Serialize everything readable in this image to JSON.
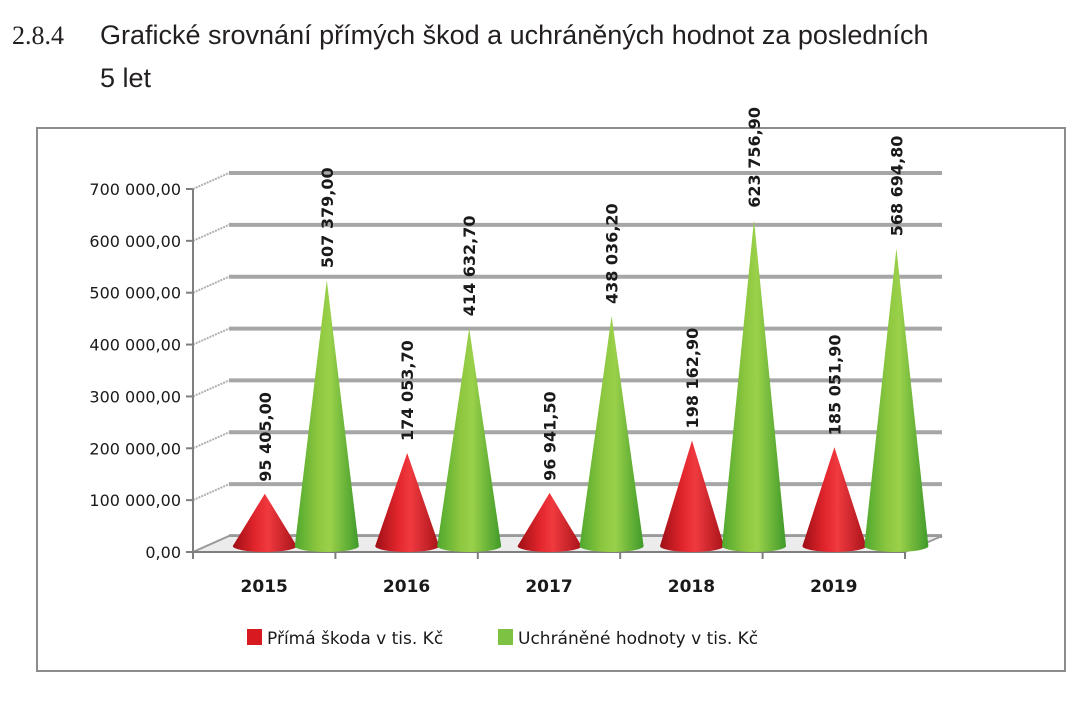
{
  "heading": {
    "number": "2.8.4",
    "title_line1": "Grafické srovnání přímých škod a uchráněných hodnot za posledních",
    "title_line2": "5 let"
  },
  "colors": {
    "series1": "#d71920",
    "series2": "#7dc242",
    "grid": "#a0a0a0",
    "axis": "#7f7f7f"
  },
  "chart_data": {
    "type": "bar",
    "subtype": "3d-cone",
    "title": "Grafické srovnání přímých škod a uchráněných hodnot za posledních 5 let",
    "xlabel": "",
    "ylabel": "",
    "categories": [
      "2015",
      "2016",
      "2017",
      "2018",
      "2019"
    ],
    "series": [
      {
        "name": "Přímá škoda v tis. Kč",
        "color": "#d71920",
        "values": [
          95405.0,
          174053.7,
          96941.5,
          198162.9,
          185051.9
        ],
        "labels": [
          "95 405,00",
          "174 053,70",
          "96 941,50",
          "198 162,90",
          "185 051,90"
        ]
      },
      {
        "name": "Uchráněné hodnoty v tis. Kč",
        "color": "#7dc242",
        "values": [
          507379.0,
          414632.7,
          438036.2,
          623756.9,
          568694.8
        ],
        "labels": [
          "507 379,00",
          "414 632,70",
          "438 036,20",
          "623 756,90",
          "568 694,80"
        ]
      }
    ],
    "ylim": [
      0,
      700000
    ],
    "yticks": [
      "0,00",
      "100 000,00",
      "200 000,00",
      "300 000,00",
      "400 000,00",
      "500 000,00",
      "600 000,00",
      "700 000,00"
    ],
    "grid": true,
    "legend_position": "bottom"
  }
}
